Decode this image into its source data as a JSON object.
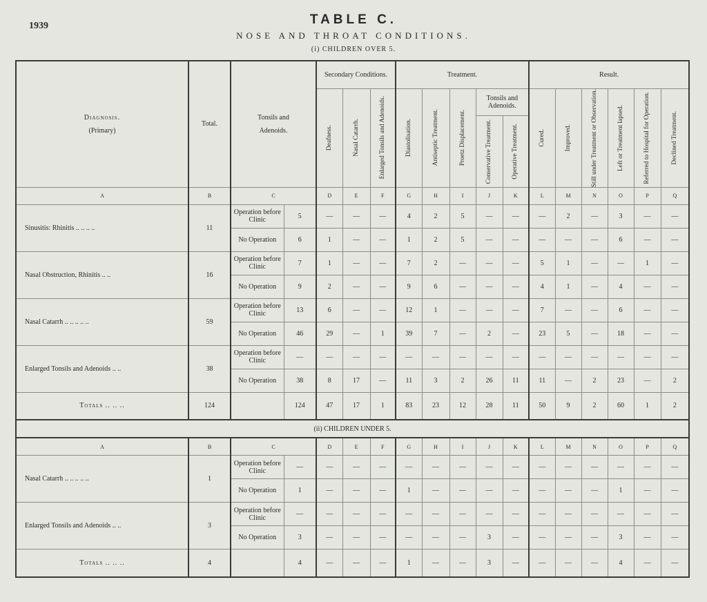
{
  "year": "1939",
  "title": "TABLE C.",
  "subtitle": "NOSE AND THROAT CONDITIONS.",
  "section1": "(i) CHILDREN OVER 5.",
  "section2": "(ii) CHILDREN UNDER 5.",
  "headers": {
    "diagnosis": "Diagnosis.",
    "primary": "(Primary)",
    "total": "Total.",
    "tonsils": "Tonsils and",
    "adenoids": "Adenoids.",
    "secondary": "Secondary Conditions.",
    "treatment": "Treatment.",
    "result": "Result.",
    "tonsils_adenoids": "Tonsils and Adenoids.",
    "cols": [
      "Deafness.",
      "Nasal Catarrh.",
      "Enlarged Tonsils and Adenoids.",
      "Diastolisation.",
      "Antiseptic Treatment.",
      "Proetz Displacement.",
      "Conservative Treatment.",
      "Operative Treatment.",
      "Cured.",
      "Improved.",
      "Still under Treatment or Observation.",
      "Left or Treatment lapsed.",
      "Referred to Hospital for Operation.",
      "Declined Treatment."
    ],
    "letters": [
      "A",
      "B",
      "C",
      "D",
      "E",
      "F",
      "G",
      "H",
      "I",
      "J",
      "K",
      "L",
      "M",
      "N",
      "O",
      "P",
      "Q"
    ]
  },
  "over5": [
    {
      "diagnosis": "Sinusitis: Rhinitis  ..  ..  ..  ..",
      "total": "11",
      "rows": [
        {
          "type": "Operation before Clinic",
          "values": [
            "5",
            "—",
            "—",
            "—",
            "4",
            "2",
            "5",
            "—",
            "—",
            "—",
            "2",
            "—",
            "3",
            "—",
            "—"
          ]
        },
        {
          "type": "No Operation",
          "values": [
            "6",
            "1",
            "—",
            "—",
            "1",
            "2",
            "5",
            "—",
            "—",
            "—",
            "—",
            "—",
            "6",
            "—",
            "—"
          ]
        }
      ]
    },
    {
      "diagnosis": "Nasal Obstruction, Rhinitis  ..  ..",
      "total": "16",
      "rows": [
        {
          "type": "Operation before Clinic",
          "values": [
            "7",
            "1",
            "—",
            "—",
            "7",
            "2",
            "—",
            "—",
            "—",
            "5",
            "1",
            "—",
            "—",
            "1",
            "—"
          ]
        },
        {
          "type": "No Operation",
          "values": [
            "9",
            "2",
            "—",
            "—",
            "9",
            "6",
            "—",
            "—",
            "—",
            "4",
            "1",
            "—",
            "4",
            "—",
            "—"
          ]
        }
      ]
    },
    {
      "diagnosis": "Nasal Catarrh ..  ..  ..  ..  ..",
      "total": "59",
      "rows": [
        {
          "type": "Operation before Clinic",
          "values": [
            "13",
            "6",
            "—",
            "—",
            "12",
            "1",
            "—",
            "—",
            "—",
            "7",
            "—",
            "—",
            "6",
            "—",
            "—"
          ]
        },
        {
          "type": "No Operation",
          "values": [
            "46",
            "29",
            "—",
            "1",
            "39",
            "7",
            "—",
            "2",
            "—",
            "23",
            "5",
            "—",
            "18",
            "—",
            "—"
          ]
        }
      ]
    },
    {
      "diagnosis": "Enlarged Tonsils and Adenoids  ..  ..",
      "total": "38",
      "rows": [
        {
          "type": "Operation before Clinic",
          "values": [
            "—",
            "—",
            "—",
            "—",
            "—",
            "—",
            "—",
            "—",
            "—",
            "—",
            "—",
            "—",
            "—",
            "—",
            "—"
          ]
        },
        {
          "type": "No Operation",
          "values": [
            "38",
            "8",
            "17",
            "—",
            "11",
            "3",
            "2",
            "26",
            "11",
            "11",
            "—",
            "2",
            "23",
            "—",
            "2"
          ]
        }
      ]
    }
  ],
  "over5_totals": {
    "label": "Totals  ..  ..  ..",
    "total": "124",
    "values": [
      "124",
      "47",
      "17",
      "1",
      "83",
      "23",
      "12",
      "28",
      "11",
      "50",
      "9",
      "2",
      "60",
      "1",
      "2"
    ]
  },
  "under5": [
    {
      "diagnosis": "Nasal Catarrh ..  ..  ..  ..  ..",
      "total": "1",
      "rows": [
        {
          "type": "Operation before Clinic",
          "values": [
            "—",
            "—",
            "—",
            "—",
            "—",
            "—",
            "—",
            "—",
            "—",
            "—",
            "—",
            "—",
            "—",
            "—",
            "—"
          ]
        },
        {
          "type": "No Operation",
          "values": [
            "1",
            "—",
            "—",
            "—",
            "1",
            "—",
            "—",
            "—",
            "—",
            "—",
            "—",
            "—",
            "1",
            "—",
            "—"
          ]
        }
      ]
    },
    {
      "diagnosis": "Enlarged Tonsils and Adenoids  ..  ..",
      "total": "3",
      "rows": [
        {
          "type": "Operation before Clinic",
          "values": [
            "—",
            "—",
            "—",
            "—",
            "—",
            "—",
            "—",
            "—",
            "—",
            "—",
            "—",
            "—",
            "—",
            "—",
            "—"
          ]
        },
        {
          "type": "No Operation",
          "values": [
            "3",
            "—",
            "—",
            "—",
            "—",
            "—",
            "—",
            "3",
            "—",
            "—",
            "—",
            "—",
            "3",
            "—",
            "—"
          ]
        }
      ]
    }
  ],
  "under5_totals": {
    "label": "Totals  ..  ..  ..",
    "total": "4",
    "values": [
      "4",
      "—",
      "—",
      "—",
      "1",
      "—",
      "—",
      "3",
      "—",
      "—",
      "—",
      "—",
      "4",
      "—",
      "—"
    ]
  }
}
